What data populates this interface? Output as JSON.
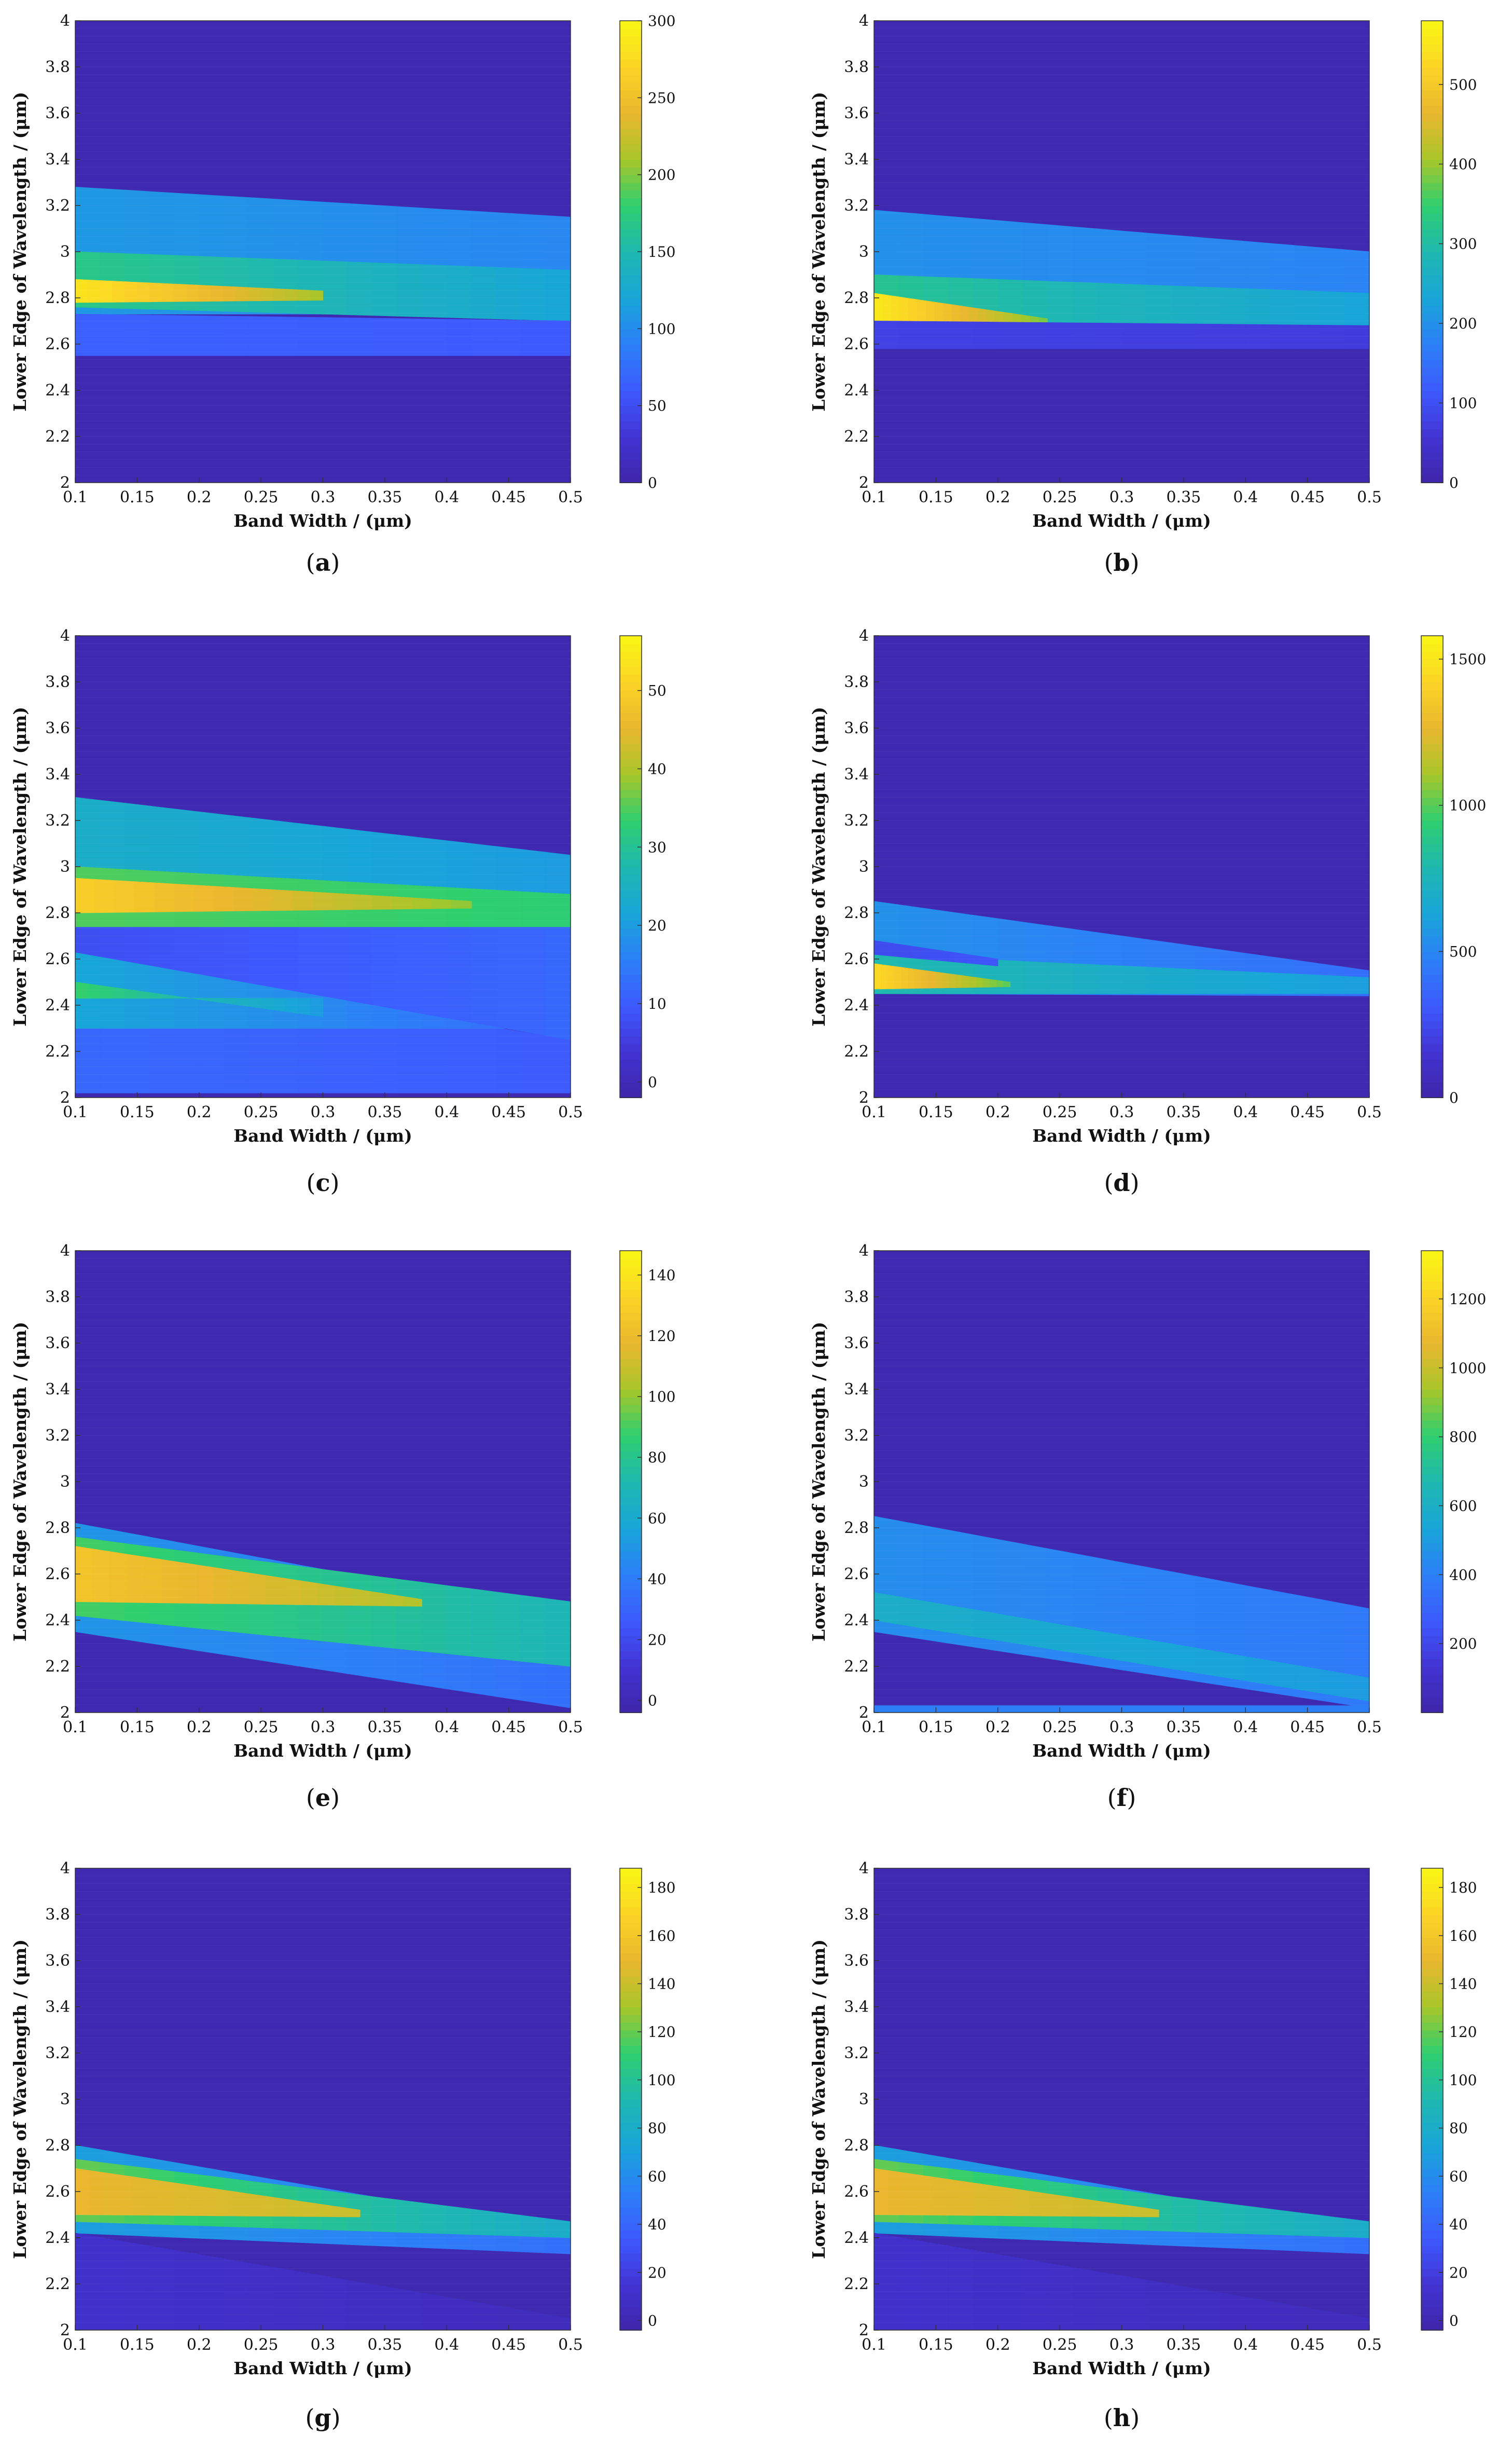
{
  "figure": {
    "panel_count": 8
  },
  "colormap": [
    "#3e26a8",
    "#4233d3",
    "#3d5afe",
    "#2c80f7",
    "#18a5d8",
    "#1fb8b0",
    "#2ecf6f",
    "#a7c629",
    "#eab72e",
    "#fbd426",
    "#f9f714"
  ],
  "chart_data": [
    {
      "type": "heatmap",
      "panel_label": "(a)",
      "xlabel": "Band Width / (μm)",
      "ylabel": "Lower Edge of Wavelength / (μm)",
      "xlim": [
        0.1,
        0.5
      ],
      "ylim": [
        2,
        4
      ],
      "x_ticks": [
        "0.1",
        "0.15",
        "0.2",
        "0.25",
        "0.3",
        "0.35",
        "0.4",
        "0.45",
        "0.5"
      ],
      "y_ticks": [
        "2",
        "2.2",
        "2.4",
        "2.6",
        "2.8",
        "3",
        "3.2",
        "3.4",
        "3.6",
        "3.8",
        "4"
      ],
      "colorbar": {
        "min": 0,
        "max": 300,
        "ticks": [
          0,
          50,
          100,
          150,
          200,
          250,
          300
        ]
      },
      "bands": [
        {
          "y_start": [
            2.73,
            2.73
          ],
          "y_end": [
            3.28,
            3.15
          ],
          "value": [
            110,
            95
          ]
        },
        {
          "y_start": [
            2.76,
            2.7
          ],
          "y_end": [
            3.0,
            2.92
          ],
          "value": [
            170,
            120
          ]
        },
        {
          "y_start": [
            2.78,
            2.79
          ],
          "y_end": [
            2.88,
            2.83
          ],
          "x_range": [
            0.1,
            0.3
          ],
          "value": [
            285,
            210
          ]
        },
        {
          "y_start": [
            2.55,
            2.55
          ],
          "y_end": [
            2.73,
            2.7
          ],
          "value": [
            65,
            60
          ]
        }
      ]
    },
    {
      "type": "heatmap",
      "panel_label": "(b)",
      "xlabel": "Band Width / (μm)",
      "ylabel": "Lower Edge of Wavelength / (μm)",
      "xlim": [
        0.1,
        0.5
      ],
      "ylim": [
        2,
        4
      ],
      "x_ticks": [
        "0.1",
        "0.15",
        "0.2",
        "0.25",
        "0.3",
        "0.35",
        "0.4",
        "0.45",
        "0.5"
      ],
      "y_ticks": [
        "2",
        "2.2",
        "2.4",
        "2.6",
        "2.8",
        "3",
        "3.2",
        "3.4",
        "3.6",
        "3.8",
        "4"
      ],
      "colorbar": {
        "min": 0,
        "max": 580,
        "ticks": [
          0,
          100,
          200,
          300,
          400,
          500
        ]
      },
      "bands": [
        {
          "y_start": [
            2.7,
            2.68
          ],
          "y_end": [
            3.18,
            3.0
          ],
          "value": [
            200,
            180
          ]
        },
        {
          "y_start": [
            2.7,
            2.68
          ],
          "y_end": [
            2.9,
            2.82
          ],
          "value": [
            320,
            230
          ]
        },
        {
          "y_start": [
            2.7,
            2.69
          ],
          "y_end": [
            2.82,
            2.71
          ],
          "x_range": [
            0.1,
            0.24
          ],
          "value": [
            560,
            380
          ]
        },
        {
          "y_start": [
            2.58,
            2.58
          ],
          "y_end": [
            2.7,
            2.68
          ],
          "value": [
            80,
            70
          ]
        }
      ]
    },
    {
      "type": "heatmap",
      "panel_label": "(c)",
      "xlabel": "Band Width / (μm)",
      "ylabel": "Lower Edge of Wavelength / (μm)",
      "xlim": [
        0.1,
        0.5
      ],
      "ylim": [
        2,
        4
      ],
      "x_ticks": [
        "0.1",
        "0.15",
        "0.2",
        "0.25",
        "0.3",
        "0.35",
        "0.4",
        "0.45",
        "0.5"
      ],
      "y_ticks": [
        "2",
        "2.2",
        "2.4",
        "2.6",
        "2.8",
        "3",
        "3.2",
        "3.4",
        "3.6",
        "3.8",
        "4"
      ],
      "colorbar": {
        "min": -2,
        "max": 57,
        "ticks": [
          0,
          10,
          20,
          30,
          40,
          50
        ]
      },
      "bands": [
        {
          "y_start": [
            2.02,
            2.02
          ],
          "y_end": [
            2.6,
            2.25
          ],
          "value": [
            12,
            10
          ]
        },
        {
          "y_start": [
            2.3,
            2.3
          ],
          "y_end": [
            2.63,
            2.25
          ],
          "value": [
            22,
            12
          ]
        },
        {
          "y_start": [
            2.43,
            2.43
          ],
          "y_end": [
            2.5,
            2.35
          ],
          "x_range": [
            0.1,
            0.3
          ],
          "value": [
            34,
            20
          ]
        },
        {
          "y_start": [
            2.63,
            2.25
          ],
          "y_end": [
            2.74,
            2.74
          ],
          "value": [
            8,
            12
          ]
        },
        {
          "y_start": [
            2.74,
            2.74
          ],
          "y_end": [
            3.3,
            3.05
          ],
          "value": [
            24,
            20
          ]
        },
        {
          "y_start": [
            2.74,
            2.74
          ],
          "y_end": [
            3.0,
            2.88
          ],
          "value": [
            35,
            33
          ]
        },
        {
          "y_start": [
            2.8,
            2.82
          ],
          "y_end": [
            2.95,
            2.85
          ],
          "x_range": [
            0.1,
            0.42
          ],
          "value": [
            50,
            38
          ]
        }
      ]
    },
    {
      "type": "heatmap",
      "panel_label": "(d)",
      "xlabel": "Band Width / (μm)",
      "ylabel": "Lower Edge of Wavelength / (μm)",
      "xlim": [
        0.1,
        0.5
      ],
      "ylim": [
        2,
        4
      ],
      "x_ticks": [
        "0.1",
        "0.15",
        "0.2",
        "0.25",
        "0.3",
        "0.35",
        "0.4",
        "0.45",
        "0.5"
      ],
      "y_ticks": [
        "2",
        "2.2",
        "2.4",
        "2.6",
        "2.8",
        "3",
        "3.2",
        "3.4",
        "3.6",
        "3.8",
        "4"
      ],
      "colorbar": {
        "min": 0,
        "max": 1580,
        "ticks": [
          0,
          500,
          1000,
          1500
        ]
      },
      "bands": [
        {
          "y_start": [
            2.45,
            2.44
          ],
          "y_end": [
            2.85,
            2.55
          ],
          "value": [
            550,
            400
          ]
        },
        {
          "y_start": [
            2.45,
            2.45
          ],
          "y_end": [
            2.62,
            2.52
          ],
          "value": [
            800,
            600
          ]
        },
        {
          "y_start": [
            2.47,
            2.48
          ],
          "y_end": [
            2.58,
            2.5
          ],
          "x_range": [
            0.1,
            0.21
          ],
          "value": [
            1450,
            1000
          ]
        },
        {
          "y_start": [
            2.62,
            2.57
          ],
          "y_end": [
            2.68,
            2.6
          ],
          "x_range": [
            0.1,
            0.2
          ],
          "value": [
            250,
            300
          ]
        }
      ]
    },
    {
      "type": "heatmap",
      "panel_label": "(e)",
      "xlabel": "Band Width / (μm)",
      "ylabel": "Lower Edge of Wavelength / (μm)",
      "xlim": [
        0.1,
        0.5
      ],
      "ylim": [
        2,
        4
      ],
      "x_ticks": [
        "0.1",
        "0.15",
        "0.2",
        "0.25",
        "0.3",
        "0.35",
        "0.4",
        "0.45",
        "0.5"
      ],
      "y_ticks": [
        "2",
        "2.2",
        "2.4",
        "2.6",
        "2.8",
        "3",
        "3.2",
        "3.4",
        "3.6",
        "3.8",
        "4"
      ],
      "colorbar": {
        "min": -4,
        "max": 148,
        "ticks": [
          0,
          20,
          40,
          60,
          80,
          100,
          120,
          140
        ]
      },
      "bands": [
        {
          "y_start": [
            2.35,
            2.02
          ],
          "y_end": [
            2.82,
            2.42
          ],
          "value": [
            50,
            35
          ]
        },
        {
          "y_start": [
            2.42,
            2.2
          ],
          "y_end": [
            2.76,
            2.48
          ],
          "value": [
            90,
            70
          ]
        },
        {
          "y_start": [
            2.48,
            2.46
          ],
          "y_end": [
            2.72,
            2.49
          ],
          "x_range": [
            0.1,
            0.38
          ],
          "value": [
            125,
            105
          ]
        }
      ]
    },
    {
      "type": "heatmap",
      "panel_label": "(f)",
      "xlabel": "Band Width / (μm)",
      "ylabel": "Lower Edge of Wavelength / (μm)",
      "xlim": [
        0.1,
        0.5
      ],
      "ylim": [
        2,
        4
      ],
      "x_ticks": [
        "0.1",
        "0.15",
        "0.2",
        "0.25",
        "0.3",
        "0.35",
        "0.4",
        "0.45",
        "0.5"
      ],
      "y_ticks": [
        "2",
        "2.2",
        "2.4",
        "2.6",
        "2.8",
        "3",
        "3.2",
        "3.4",
        "3.6",
        "3.8",
        "4"
      ],
      "colorbar": {
        "min": 0,
        "max": 1340,
        "ticks": [
          200,
          400,
          600,
          800,
          1000,
          1200
        ]
      },
      "bands": [
        {
          "y_start": [
            2.35,
            2.02
          ],
          "y_end": [
            2.85,
            2.45
          ],
          "value": [
            450,
            380
          ]
        },
        {
          "y_start": [
            2.4,
            2.05
          ],
          "y_end": [
            2.52,
            2.15
          ],
          "value": [
            600,
            500
          ]
        },
        {
          "y_start": [
            2.0,
            2.0
          ],
          "y_end": [
            2.03,
            2.03
          ],
          "value": [
            400,
            400
          ]
        }
      ]
    },
    {
      "type": "heatmap",
      "panel_label": "(g)",
      "xlabel": "Band Width / (μm)",
      "ylabel": "Lower Edge of Wavelength / (μm)",
      "xlim": [
        0.1,
        0.5
      ],
      "ylim": [
        2,
        4
      ],
      "x_ticks": [
        "0.1",
        "0.15",
        "0.2",
        "0.25",
        "0.3",
        "0.35",
        "0.4",
        "0.45",
        "0.5"
      ],
      "y_ticks": [
        "2",
        "2.2",
        "2.4",
        "2.6",
        "2.8",
        "3",
        "3.2",
        "3.4",
        "3.6",
        "3.8",
        "4"
      ],
      "colorbar": {
        "min": -4,
        "max": 188,
        "ticks": [
          0,
          20,
          40,
          60,
          80,
          100,
          120,
          140,
          160,
          180
        ]
      },
      "bands": [
        {
          "y_start": [
            2.42,
            2.33
          ],
          "y_end": [
            2.8,
            2.43
          ],
          "value": [
            70,
            45
          ]
        },
        {
          "y_start": [
            2.47,
            2.4
          ],
          "y_end": [
            2.74,
            2.47
          ],
          "value": [
            120,
            80
          ]
        },
        {
          "y_start": [
            2.5,
            2.49
          ],
          "y_end": [
            2.7,
            2.52
          ],
          "x_range": [
            0.1,
            0.33
          ],
          "value": [
            150,
            140
          ]
        },
        {
          "y_start": [
            2.0,
            2.0
          ],
          "y_end": [
            2.42,
            2.05
          ],
          "value": [
            12,
            5
          ]
        }
      ]
    },
    {
      "type": "heatmap",
      "panel_label": "(h)",
      "xlabel": "Band Width / (μm)",
      "ylabel": "Lower Edge of Wavelength / (μm)",
      "xlim": [
        0.1,
        0.5
      ],
      "ylim": [
        2,
        4
      ],
      "x_ticks": [
        "0.1",
        "0.15",
        "0.2",
        "0.25",
        "0.3",
        "0.35",
        "0.4",
        "0.45",
        "0.5"
      ],
      "y_ticks": [
        "2",
        "2.2",
        "2.4",
        "2.6",
        "2.8",
        "3",
        "3.2",
        "3.4",
        "3.6",
        "3.8",
        "4"
      ],
      "colorbar": {
        "min": -4,
        "max": 188,
        "ticks": [
          0,
          20,
          40,
          60,
          80,
          100,
          120,
          140,
          160,
          180
        ]
      },
      "bands": [
        {
          "y_start": [
            2.42,
            2.33
          ],
          "y_end": [
            2.8,
            2.43
          ],
          "value": [
            70,
            45
          ]
        },
        {
          "y_start": [
            2.47,
            2.4
          ],
          "y_end": [
            2.74,
            2.47
          ],
          "value": [
            120,
            80
          ]
        },
        {
          "y_start": [
            2.5,
            2.49
          ],
          "y_end": [
            2.7,
            2.52
          ],
          "x_range": [
            0.1,
            0.33
          ],
          "value": [
            150,
            140
          ]
        },
        {
          "y_start": [
            2.0,
            2.0
          ],
          "y_end": [
            2.42,
            2.05
          ],
          "value": [
            12,
            5
          ]
        }
      ]
    }
  ]
}
